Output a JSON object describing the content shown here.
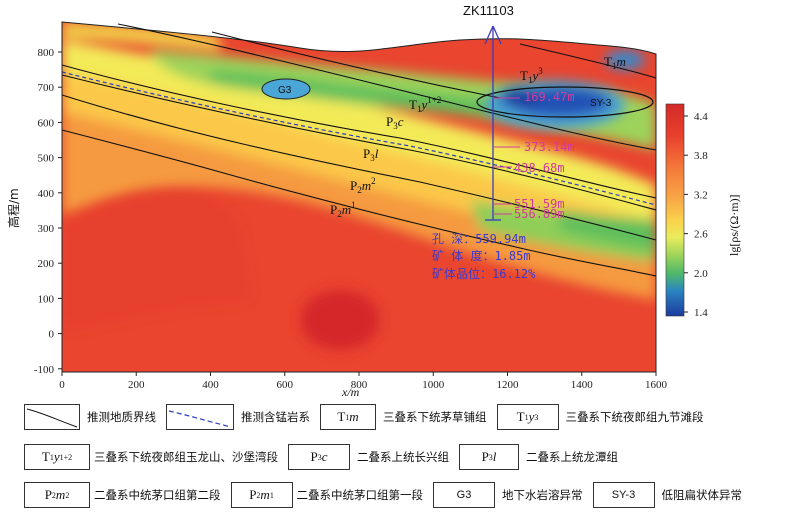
{
  "figure": {
    "borehole": "ZK11103",
    "y_axis_label": "高程/m",
    "x_axis_label": "x/m",
    "x_ticks": [
      "0",
      "200",
      "400",
      "600",
      "800",
      "1000",
      "1200",
      "1400",
      "1600"
    ],
    "y_ticks": [
      "800",
      "700",
      "600",
      "500",
      "400",
      "300",
      "200",
      "100",
      "0",
      "-100"
    ],
    "depth_marks": [
      "169.47m",
      "373.14m",
      "438.68m",
      "551.59m",
      "556.89m"
    ],
    "info_lines": [
      "孔    深：559.94m",
      "矿 体 度：1.85m",
      "矿体品位：16.12%"
    ],
    "colorbar": {
      "ticks": [
        "4.4",
        "3.8",
        "3.2",
        "2.6",
        "2.0",
        "1.4"
      ],
      "label": "lg[ρs/(Ω·m)]",
      "colors": [
        "#e83a2c",
        "#f0683a",
        "#f6963e",
        "#fbc44a",
        "#eeee60",
        "#a6d85a",
        "#5cbf5a",
        "#3fa87f",
        "#2a74c4",
        "#1f3fa5"
      ]
    },
    "units": [
      {
        "id": "T1m",
        "label": "T1m"
      },
      {
        "id": "T1y3",
        "label": "T1y3"
      },
      {
        "id": "T1y12",
        "label": "T1y1+2"
      },
      {
        "id": "P3c",
        "label": "P3c"
      },
      {
        "id": "P3l",
        "label": "P3l"
      },
      {
        "id": "P2m2",
        "label": "P2m2"
      },
      {
        "id": "P2m1",
        "label": "P2m1"
      }
    ],
    "anomalies": {
      "g3": "G3",
      "sy3": "SY-3"
    }
  },
  "legend": {
    "geo_line": "推测地质界线",
    "mn_line": "推测含锰岩系",
    "T1m_text": "三叠系下统茅草铺组",
    "T1y3_text": "三叠系下统夜郎组九节滩段",
    "T1y12_text": "三叠系下统夜郎组玉龙山、沙堡湾段",
    "P3c_text": "二叠系上统长兴组",
    "P3l_text": "二叠系上统龙潭组",
    "P2m2_text": "二叠系中统茅口组第二段",
    "P2m1_text": "二叠系中统茅口组第一段",
    "G3_box": "G3",
    "G3_text": "地下水岩溶异常",
    "SY3_box": "SY-3",
    "SY3_text": "低阻扁状体异常"
  }
}
